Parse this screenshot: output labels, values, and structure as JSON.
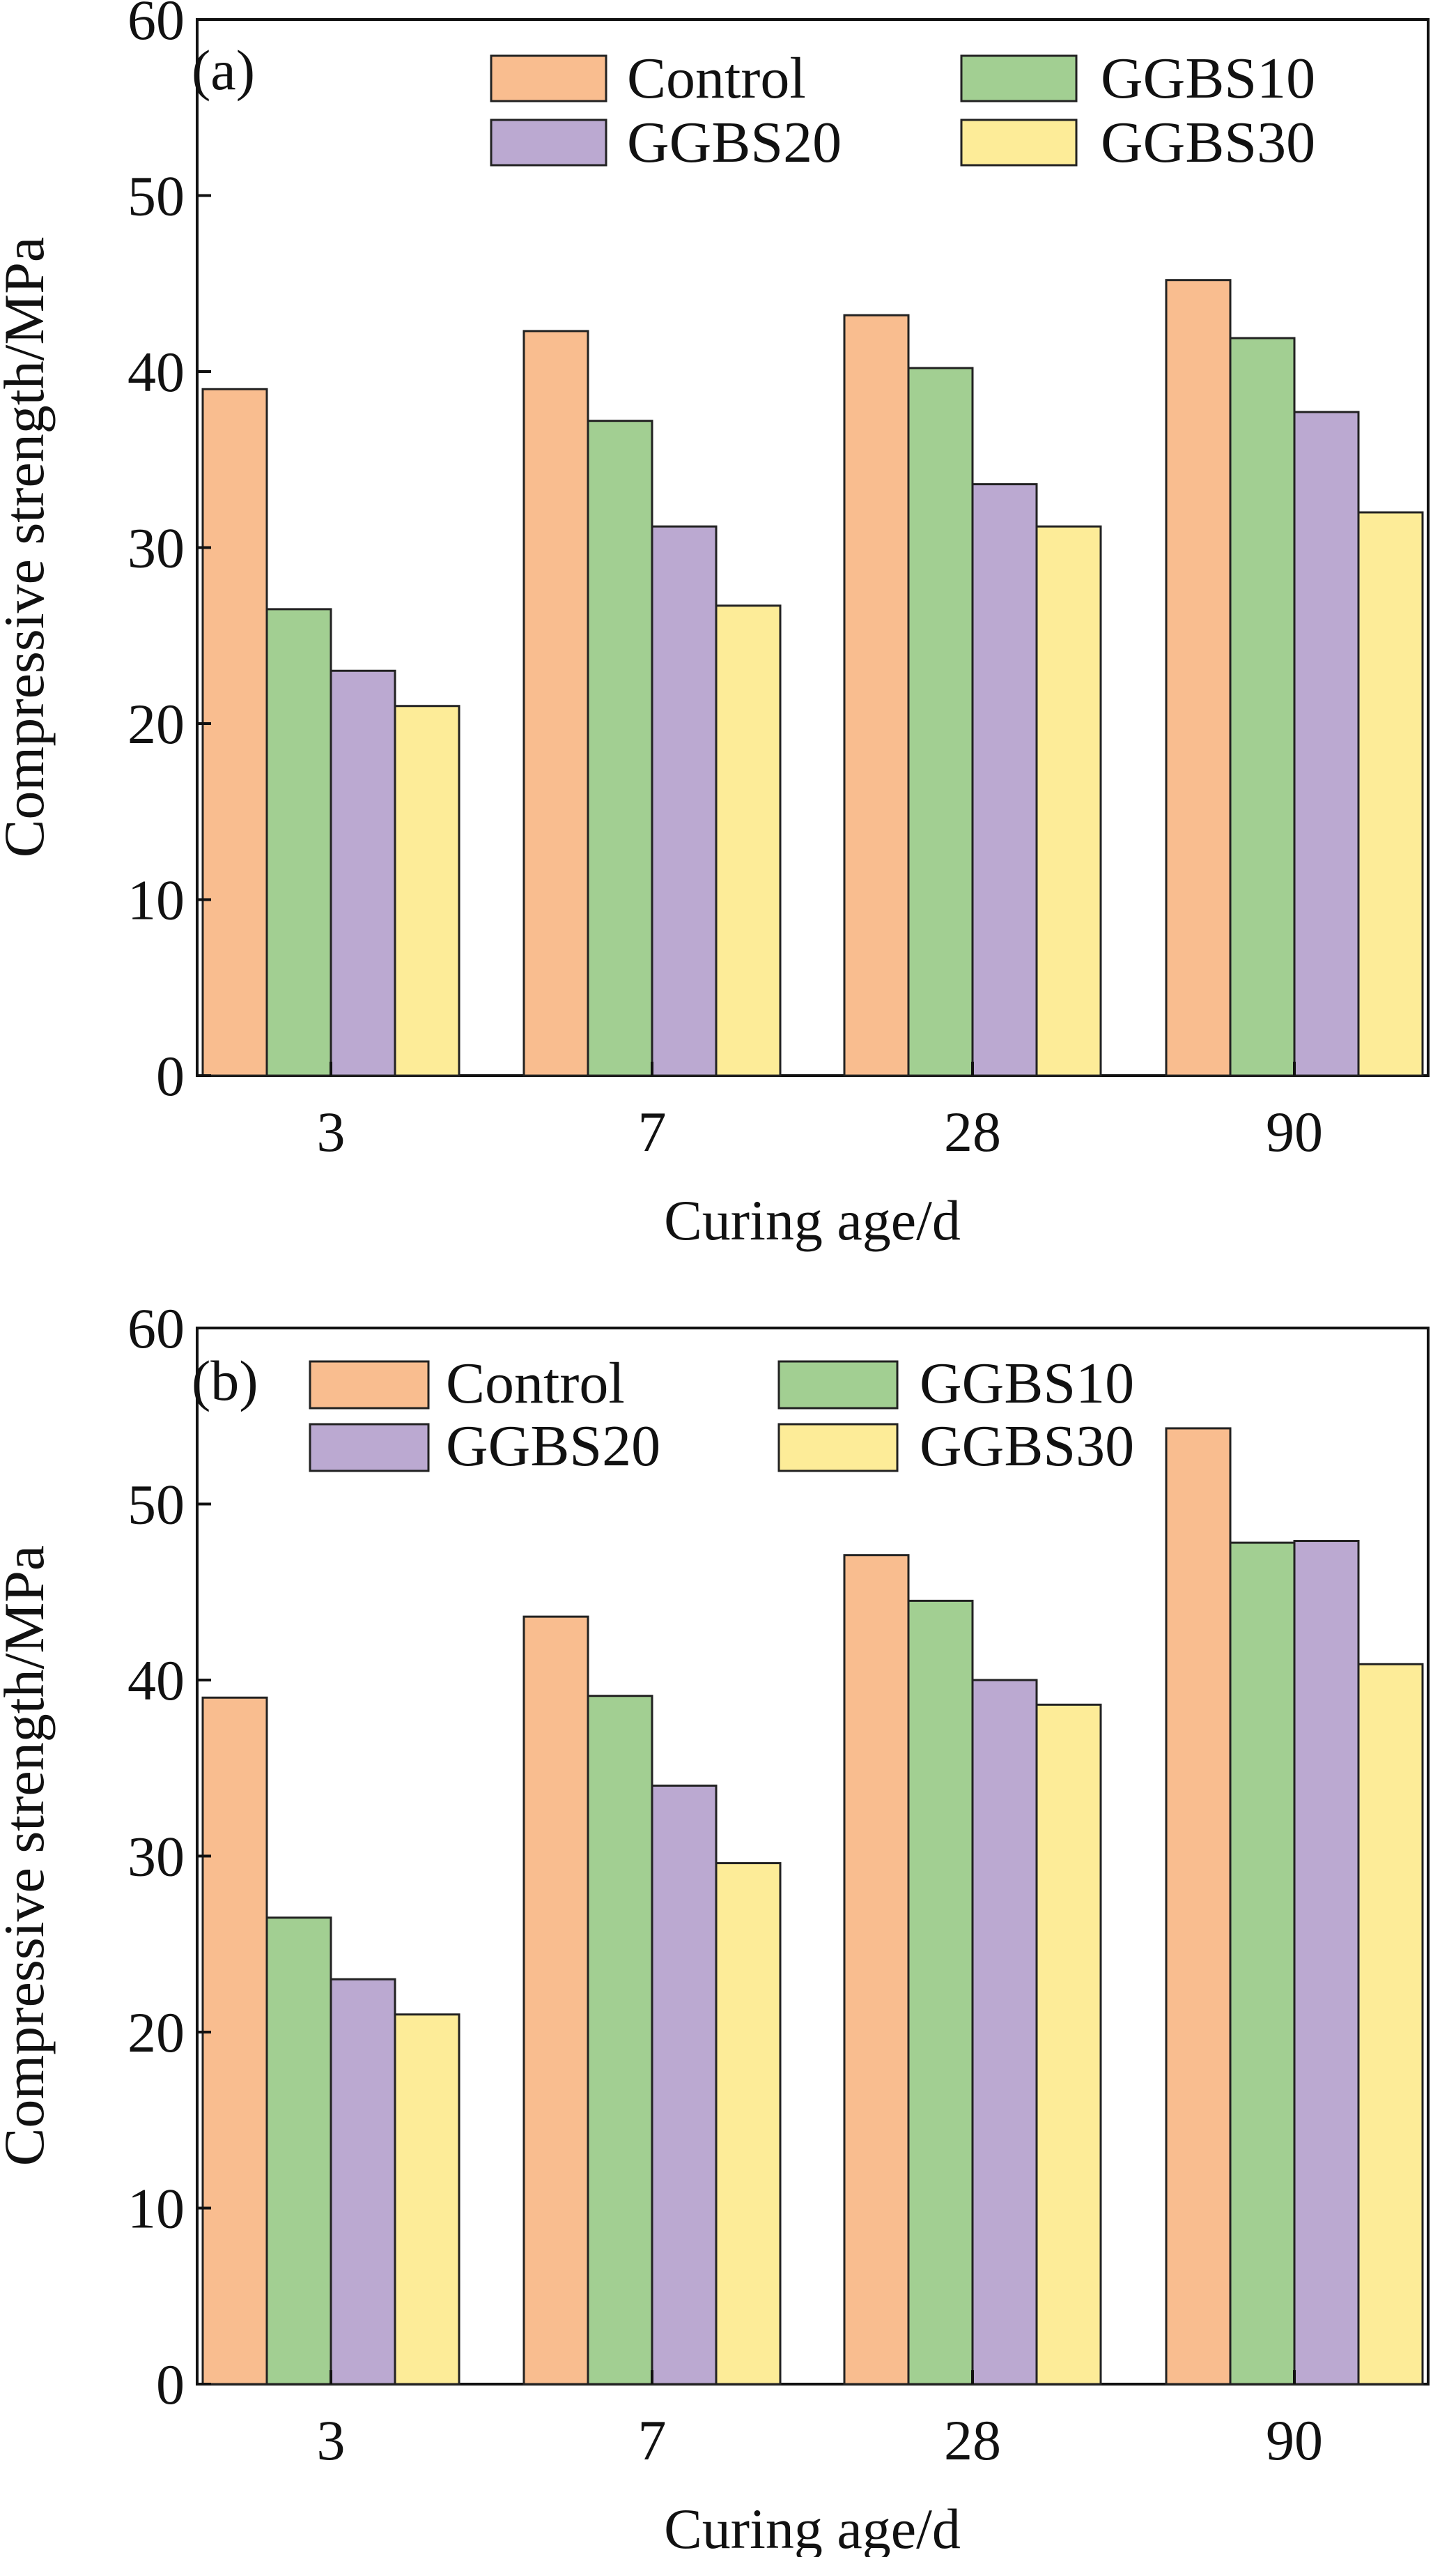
{
  "chart_data": [
    {
      "type": "bar",
      "panel_label": "(a)",
      "categories": [
        "3",
        "7",
        "28",
        "90"
      ],
      "series": [
        {
          "name": "Control",
          "color": "#F9BD8F",
          "values": [
            39.0,
            42.3,
            43.2,
            45.2
          ]
        },
        {
          "name": "GGBS10",
          "color": "#A2CF92",
          "values": [
            26.5,
            37.2,
            40.2,
            41.9
          ]
        },
        {
          "name": "GGBS20",
          "color": "#BBA9D1",
          "values": [
            23.0,
            31.2,
            33.6,
            37.7
          ]
        },
        {
          "name": "GGBS30",
          "color": "#FDEC98",
          "values": [
            21.0,
            26.7,
            31.2,
            32.0
          ]
        }
      ],
      "xlabel": "Curing age/d",
      "ylabel": "Compressive strength/MPa",
      "ylim": [
        0,
        60
      ],
      "yticks": [
        "0",
        "10",
        "20",
        "30",
        "40",
        "50",
        "60"
      ],
      "legend_placement": "top-right"
    },
    {
      "type": "bar",
      "panel_label": "(b)",
      "categories": [
        "3",
        "7",
        "28",
        "90"
      ],
      "series": [
        {
          "name": "Control",
          "color": "#F9BD8F",
          "values": [
            39.0,
            43.6,
            47.1,
            54.3
          ]
        },
        {
          "name": "GGBS10",
          "color": "#A2CF92",
          "values": [
            26.5,
            39.1,
            44.5,
            47.8
          ]
        },
        {
          "name": "GGBS20",
          "color": "#BBA9D1",
          "values": [
            23.0,
            34.0,
            40.0,
            47.9
          ]
        },
        {
          "name": "GGBS30",
          "color": "#FDEC98",
          "values": [
            21.0,
            29.6,
            38.6,
            40.9
          ]
        }
      ],
      "xlabel": "Curing age/d",
      "ylabel": "Compressive strength/MPa",
      "ylim": [
        0,
        60
      ],
      "yticks": [
        "0",
        "10",
        "20",
        "30",
        "40",
        "50",
        "60"
      ],
      "legend_placement": "top"
    }
  ]
}
